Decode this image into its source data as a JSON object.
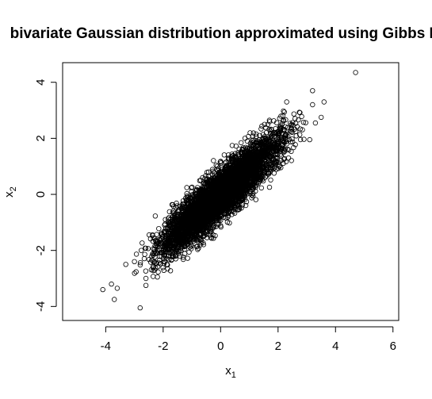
{
  "chart_data": {
    "type": "scatter",
    "title": "bivariate Gaussian distribution approximated using Gibbs M",
    "xlabel": {
      "base": "x",
      "sub": "1"
    },
    "ylabel": {
      "base": "x",
      "sub": "2"
    },
    "xlim": [
      -5.5,
      6.2
    ],
    "ylim": [
      -4.5,
      4.7
    ],
    "xticks": [
      "-4",
      "-2",
      "0",
      "2",
      "4",
      "6"
    ],
    "yticks": [
      "-4",
      "-2",
      "0",
      "2",
      "4"
    ],
    "marker": "open-circle",
    "point_color": "#000000",
    "grid": false,
    "legend": "none",
    "cloud": {
      "count": 5000,
      "mean": [
        0,
        0
      ],
      "sd": [
        1,
        1
      ],
      "correlation": 0.9
    },
    "outliers": [
      {
        "x": 4.7,
        "y": 4.35
      },
      {
        "x": 3.2,
        "y": 3.7
      },
      {
        "x": 2.3,
        "y": 3.3
      },
      {
        "x": 3.6,
        "y": 3.3
      },
      {
        "x": 3.2,
        "y": 3.2
      },
      {
        "x": 3.5,
        "y": 2.75
      },
      {
        "x": 3.3,
        "y": 2.55
      },
      {
        "x": 3.1,
        "y": 1.95
      },
      {
        "x": -4.1,
        "y": -3.4
      },
      {
        "x": -3.8,
        "y": -3.2
      },
      {
        "x": -3.6,
        "y": -3.35
      },
      {
        "x": -3.7,
        "y": -3.75
      },
      {
        "x": -2.8,
        "y": -4.05
      },
      {
        "x": -3.3,
        "y": -2.5
      },
      {
        "x": -3.0,
        "y": -2.4
      },
      {
        "x": -2.6,
        "y": -3.25
      },
      {
        "x": -2.6,
        "y": -3.0
      },
      {
        "x": -2.2,
        "y": -2.95
      }
    ]
  }
}
